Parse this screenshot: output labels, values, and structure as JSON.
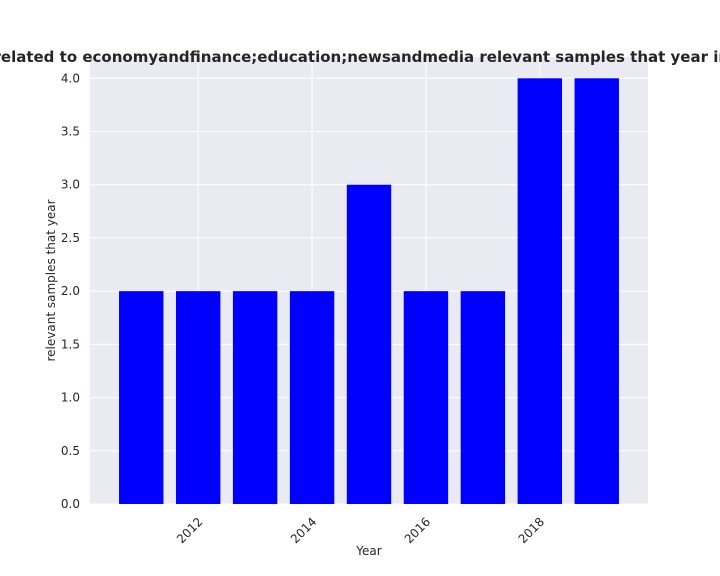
{
  "chart_data": {
    "type": "bar",
    "title": "are related to economyandfinance;education;newsandmedia relevant samples that year in priva",
    "xlabel": "Year",
    "ylabel": "relevant samples that year",
    "categories": [
      2011,
      2012,
      2013,
      2014,
      2015,
      2016,
      2017,
      2018,
      2019
    ],
    "values": [
      2,
      2,
      2,
      2,
      3,
      2,
      2,
      4,
      4
    ],
    "x_ticks": [
      2012,
      2014,
      2016,
      2018
    ],
    "y_ticks": [
      "0.0",
      "0.5",
      "1.0",
      "1.5",
      "2.0",
      "2.5",
      "3.0",
      "3.5",
      "4.0"
    ],
    "ylim": [
      0,
      4.2
    ],
    "bar_color": "#0000ff",
    "plot_background": "#eaeaf2",
    "grid_color": "#ffffff",
    "grid": true
  }
}
